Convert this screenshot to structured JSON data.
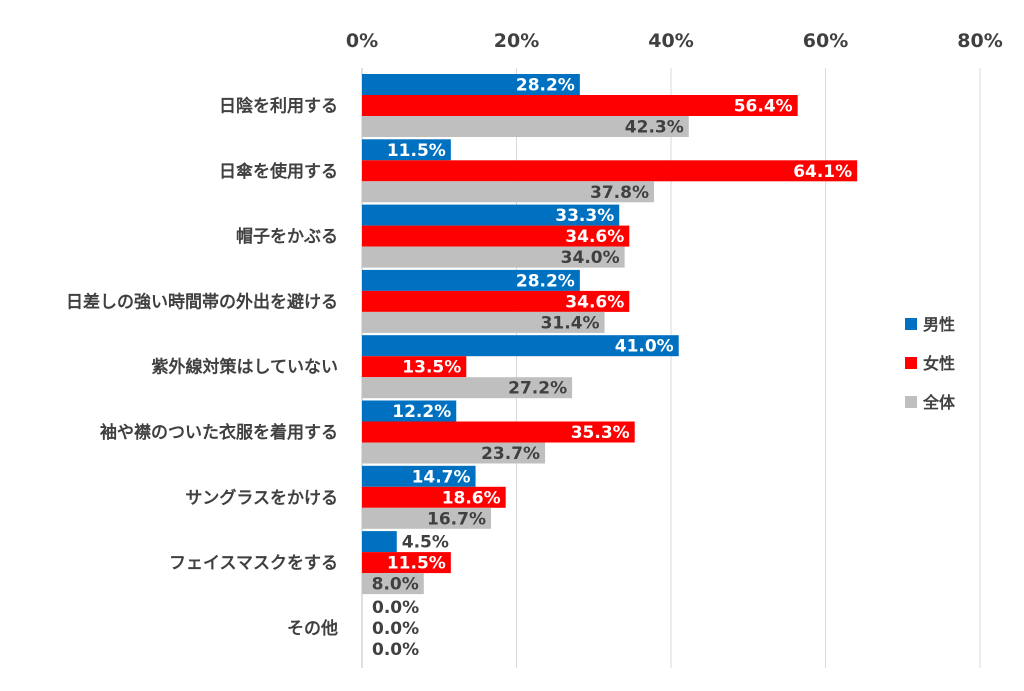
{
  "chart_data": {
    "type": "bar",
    "orientation": "horizontal",
    "categories": [
      "日陰を利用する",
      "日傘を使用する",
      "帽子をかぶる",
      "日差しの強い時間帯の外出を避ける",
      "紫外線対策はしていない",
      "袖や襟のついた衣服を着用する",
      "サングラスをかける",
      "フェイスマスクをする",
      "その他"
    ],
    "series": [
      {
        "name": "男性",
        "color": "#0070C0",
        "label_color": "#ffffff",
        "values": [
          28.2,
          11.5,
          33.3,
          28.2,
          41.0,
          12.2,
          14.7,
          4.5,
          0.0
        ],
        "labels": [
          "28.2%",
          "11.5%",
          "33.3%",
          "28.2%",
          "41.0%",
          "12.2%",
          "14.7%",
          "4.5%",
          "0.0%"
        ]
      },
      {
        "name": "女性",
        "color": "#FF0000",
        "label_color": "#ffffff",
        "values": [
          56.4,
          64.1,
          34.6,
          34.6,
          13.5,
          35.3,
          18.6,
          11.5,
          0.0
        ],
        "labels": [
          "56.4%",
          "64.1%",
          "34.6%",
          "34.6%",
          "13.5%",
          "35.3%",
          "18.6%",
          "11.5%",
          "0.0%"
        ]
      },
      {
        "name": "全体",
        "color": "#BFBFBF",
        "label_color": "#404040",
        "values": [
          42.3,
          37.8,
          34.0,
          31.4,
          27.2,
          23.7,
          16.7,
          8.0,
          0.0
        ],
        "labels": [
          "42.3%",
          "37.8%",
          "34.0%",
          "31.4%",
          "27.2%",
          "23.7%",
          "16.7%",
          "8.0%",
          "0.0%"
        ]
      }
    ],
    "xlim": [
      0,
      80
    ],
    "x_ticks": [
      0,
      20,
      40,
      60,
      80
    ],
    "x_tick_labels": [
      "0%",
      "20%",
      "40%",
      "60%",
      "80%"
    ],
    "x_axis_position": "top",
    "grid": true,
    "legend_position": "right"
  }
}
